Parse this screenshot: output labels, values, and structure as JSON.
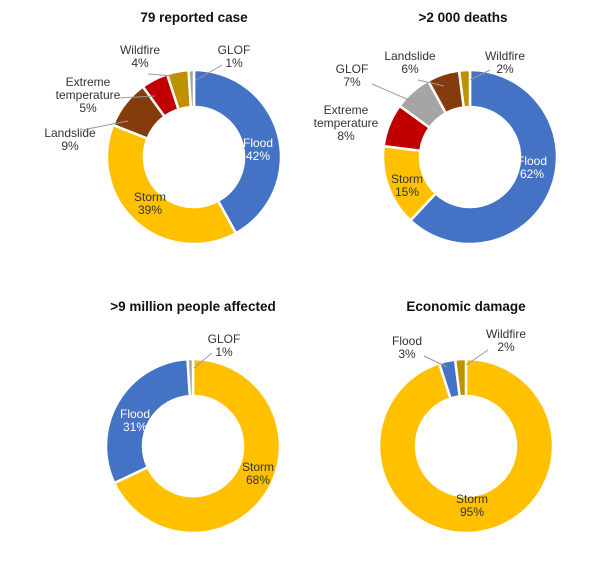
{
  "colors": {
    "flood": "#4472C4",
    "storm": "#FFC000",
    "landslide": "#843C0C",
    "extreme_temperature": "#C00000",
    "wildfire": "#BF9000",
    "glof": "#A5A5A5",
    "label_dark": "#333333",
    "label_light": "#ffffff"
  },
  "chart_data": [
    {
      "type": "pie",
      "subtype": "donut",
      "title": "79 reported case",
      "slices": [
        {
          "key": "flood",
          "name": "Flood",
          "value": 42,
          "label": "42%"
        },
        {
          "key": "storm",
          "name": "Storm",
          "value": 39,
          "label": "39%"
        },
        {
          "key": "landslide",
          "name": "Landslide",
          "value": 9,
          "label": "9%"
        },
        {
          "key": "extreme_temperature",
          "name": "Extreme temperature",
          "value": 5,
          "label": "5%"
        },
        {
          "key": "wildfire",
          "name": "Wildfire",
          "value": 4,
          "label": "4%"
        },
        {
          "key": "glof",
          "name": "GLOF",
          "value": 1,
          "label": "1%"
        }
      ]
    },
    {
      "type": "pie",
      "subtype": "donut",
      "title": ">2 000 deaths",
      "slices": [
        {
          "key": "flood",
          "name": "Flood",
          "value": 62,
          "label": "62%"
        },
        {
          "key": "storm",
          "name": "Storm",
          "value": 15,
          "label": "15%"
        },
        {
          "key": "extreme_temperature",
          "name": "Extreme temperature",
          "value": 8,
          "label": "8%"
        },
        {
          "key": "glof",
          "name": "GLOF",
          "value": 7,
          "label": "7%"
        },
        {
          "key": "landslide",
          "name": "Landslide",
          "value": 6,
          "label": "6%"
        },
        {
          "key": "wildfire",
          "name": "Wildfire",
          "value": 2,
          "label": "2%"
        }
      ]
    },
    {
      "type": "pie",
      "subtype": "donut",
      "title": ">9 million people affected",
      "slices": [
        {
          "key": "storm",
          "name": "Storm",
          "value": 68,
          "label": "68%"
        },
        {
          "key": "flood",
          "name": "Flood",
          "value": 31,
          "label": "31%"
        },
        {
          "key": "glof",
          "name": "GLOF",
          "value": 1,
          "label": "1%"
        }
      ]
    },
    {
      "type": "pie",
      "subtype": "donut",
      "title": "Economic damage",
      "slices": [
        {
          "key": "storm",
          "name": "Storm",
          "value": 95,
          "label": "95%"
        },
        {
          "key": "flood",
          "name": "Flood",
          "value": 3,
          "label": "3%"
        },
        {
          "key": "wildfire",
          "name": "Wildfire",
          "value": 2,
          "label": "2%"
        }
      ]
    }
  ]
}
